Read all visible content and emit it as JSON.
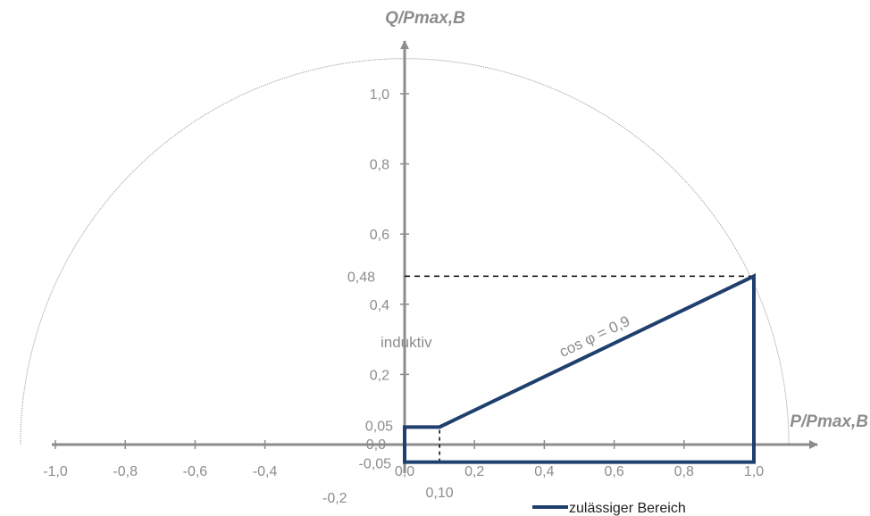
{
  "chart_data": {
    "type": "line",
    "xlabel": "P/Pmax,B",
    "ylabel": "Q/Pmax,B",
    "xlim": [
      -1.0,
      1.0
    ],
    "ylim": [
      -0.05,
      1.0
    ],
    "x_ticks": [
      "-1,0",
      "-0,8",
      "-0,6",
      "-0,4",
      "0,0",
      "0,2",
      "0,4",
      "0,6",
      "0,8",
      "1,0"
    ],
    "x_ticks_values": [
      -1.0,
      -0.8,
      -0.6,
      -0.4,
      0.0,
      0.2,
      0.4,
      0.6,
      0.8,
      1.0
    ],
    "y_ticks": [
      "1,0",
      "0,8",
      "0,6",
      "0,4",
      "0,2"
    ],
    "y_ticks_values": [
      1.0,
      0.8,
      0.6,
      0.4,
      0.2
    ],
    "extra_labels": {
      "y_048": "0,48",
      "y_005": "0,05",
      "y_000": "0,0",
      "y_neg005": "-0,05",
      "x_010": "0,10",
      "x_neg02": "-0,2"
    },
    "series": [
      {
        "name": "zulässiger Bereich",
        "color": "#1f3f6e",
        "points": [
          [
            0.0,
            -0.05
          ],
          [
            0.0,
            0.05
          ],
          [
            0.1,
            0.05
          ],
          [
            1.0,
            0.48
          ],
          [
            1.0,
            -0.05
          ],
          [
            0.0,
            -0.05
          ]
        ]
      }
    ],
    "reference_lines": {
      "q_048_from_x": 0.0,
      "q_048_to_x": 1.0,
      "q_value": 0.48,
      "p_010_from_y": -0.05,
      "p_010_to_y": 0.05,
      "p_value": 0.1
    },
    "circle": {
      "center": [
        0.0,
        0.0
      ],
      "radius": 1.1
    },
    "annotations": {
      "cos_label": "cos φ = 0,9",
      "region_label": "induktiv"
    },
    "legend": {
      "label": "zulässiger Bereich",
      "position": "bottom-right"
    },
    "colors": {
      "axis": "#8c8c8c",
      "series": "#1f3f6e",
      "circle": "#9a9a9a"
    }
  }
}
